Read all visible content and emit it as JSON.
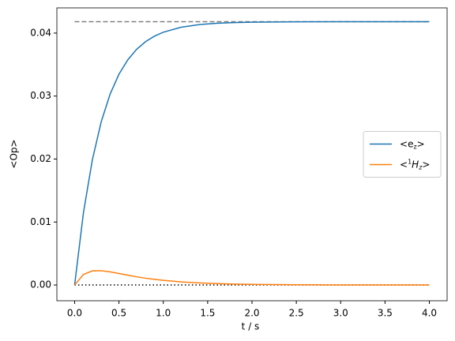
{
  "chart_data": {
    "type": "line",
    "xlabel": "t / s",
    "ylabel": "<Op>",
    "x": [
      0,
      0.1,
      0.2,
      0.3,
      0.4,
      0.5,
      0.6,
      0.7,
      0.8,
      0.9,
      1.0,
      1.2,
      1.4,
      1.6,
      1.8,
      2.0,
      2.5,
      3.0,
      4.0
    ],
    "series": [
      {
        "name": "<ez>",
        "color": "#1f77b4",
        "values": [
          0,
          0.01152,
          0.01987,
          0.02592,
          0.0303,
          0.03347,
          0.03576,
          0.03743,
          0.03864,
          0.03951,
          0.04014,
          0.04093,
          0.04134,
          0.04156,
          0.04167,
          0.04173,
          0.04179,
          0.0418,
          0.0418
        ]
      },
      {
        "name": "<1Hz>",
        "color": "#ff7f0e",
        "values": [
          0,
          0.00168,
          0.00224,
          0.00227,
          0.00209,
          0.00183,
          0.00156,
          0.0013,
          0.00108,
          0.0009,
          0.00074,
          0.0005,
          0.00033,
          0.00022,
          0.00015,
          0.0001,
          4e-05,
          1e-05,
          0
        ]
      }
    ],
    "reference_lines": [
      {
        "y": 0.0418,
        "color": "#808080",
        "style": "dashed"
      },
      {
        "y": 0,
        "color": "#000000",
        "style": "dotted"
      }
    ],
    "xlim": [
      -0.2,
      4.2
    ],
    "xticks": [
      {
        "value": 0,
        "label": "0.0"
      },
      {
        "value": 0.5,
        "label": "0.5"
      },
      {
        "value": 1,
        "label": "1.0"
      },
      {
        "value": 1.5,
        "label": "1.5"
      },
      {
        "value": 2,
        "label": "2.0"
      },
      {
        "value": 2.5,
        "label": "2.5"
      },
      {
        "value": 3,
        "label": "3.0"
      },
      {
        "value": 3.5,
        "label": "3.5"
      },
      {
        "value": 4,
        "label": "4.0"
      }
    ],
    "ylim": [
      -0.0025,
      0.044
    ],
    "yticks": [
      {
        "value": 0,
        "label": "0.00"
      },
      {
        "value": 0.01,
        "label": "0.01"
      },
      {
        "value": 0.02,
        "label": "0.02"
      },
      {
        "value": 0.03,
        "label": "0.03"
      },
      {
        "value": 0.04,
        "label": "0.04"
      }
    ],
    "legend": "center right"
  }
}
